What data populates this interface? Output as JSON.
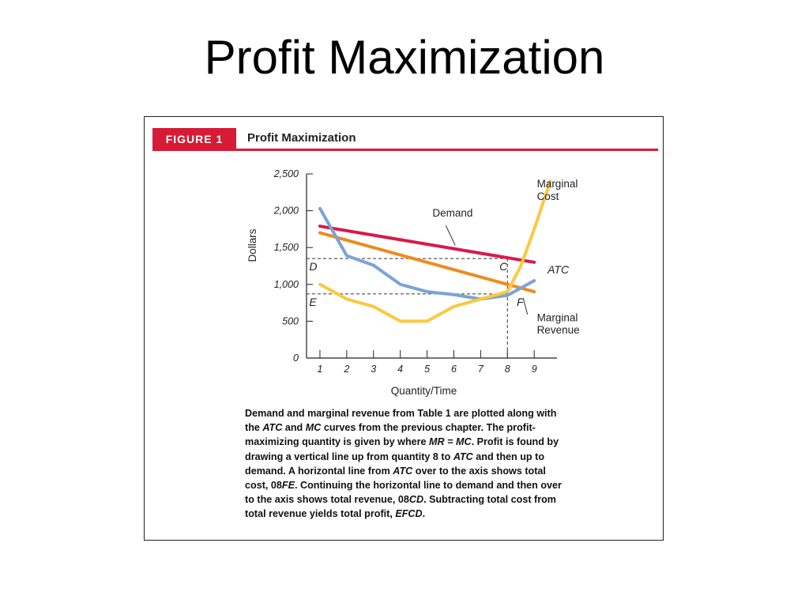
{
  "slide": {
    "title": "Profit Maximization"
  },
  "figure": {
    "tag": "FIGURE 1",
    "title": "Profit Maximization",
    "caption": {
      "p1": "Demand and marginal revenue from Table 1 are plotted along with the ",
      "atc1": "ATC",
      "p2": " and ",
      "mc": "MC",
      "p3": " curves from the previous chapter. The profit-maximizing quantity is given by where ",
      "mrmc": "MR = MC",
      "p4": ". Profit is found by drawing a vertical line up from quantity 8 to ",
      "atc2": "ATC",
      "p5": " and then up to demand. A horizontal line from ",
      "atc3": "ATC",
      "p6": " over to the axis shows total cost, 08",
      "fe": "FE",
      "p7": ". Continuing the horizontal line to demand and then over to the axis shows total revenue, 08",
      "cd": "CD",
      "p8": ". Subtracting total cost from total revenue yields total profit, ",
      "efcd": "EFCD",
      "p9": "."
    }
  },
  "chart_data": {
    "type": "line",
    "xlabel": "Quantity/Time",
    "ylabel": "Dollars",
    "xlim": [
      0.5,
      9.85
    ],
    "ylim": [
      0,
      2500
    ],
    "x_ticks": [
      1,
      2,
      3,
      4,
      5,
      6,
      7,
      8,
      9
    ],
    "y_ticks": [
      0,
      500,
      1000,
      1500,
      2000,
      2500
    ],
    "y_tick_labels": [
      "0",
      "500",
      "1,000",
      "1,500",
      "2,000",
      "2,500"
    ],
    "grid": false,
    "series": [
      {
        "name": "Demand",
        "color": "#d71a4a",
        "x": [
          1,
          9
        ],
        "y": [
          1790,
          1300
        ]
      },
      {
        "name": "Marginal Revenue",
        "color": "#f08a1c",
        "x": [
          1,
          9
        ],
        "y": [
          1700,
          900
        ]
      },
      {
        "name": "ATC",
        "color": "#7ba3d6",
        "x": [
          1,
          2,
          3,
          4,
          5,
          6,
          7,
          8,
          9
        ],
        "y": [
          2030,
          1390,
          1260,
          1000,
          900,
          860,
          800,
          850,
          1050
        ]
      },
      {
        "name": "Marginal Cost",
        "color": "#fbc840",
        "x": [
          1,
          2,
          3,
          4,
          5,
          6,
          7,
          8,
          8.5,
          9,
          9.6
        ],
        "y": [
          1000,
          800,
          700,
          500,
          500,
          700,
          800,
          900,
          1250,
          1750,
          2400
        ]
      }
    ],
    "guides": {
      "vertical_x": 8,
      "horizontal_y": [
        1350,
        870
      ]
    },
    "annotations": [
      {
        "text": "Demand",
        "x": 5.2,
        "y": 1920
      },
      {
        "text": "Marginal",
        "x": 9.1,
        "y": 2320
      },
      {
        "text": "Cost",
        "x": 9.1,
        "y": 2145
      },
      {
        "text": "ATC",
        "x": 9.5,
        "y": 1150
      },
      {
        "text": "Marginal",
        "x": 9.1,
        "y": 500
      },
      {
        "text": "Revenue",
        "x": 9.1,
        "y": 330
      },
      {
        "text": "C",
        "x": 7.7,
        "y": 1190
      },
      {
        "text": "D",
        "x": 0.6,
        "y": 1190
      },
      {
        "text": "E",
        "x": 0.6,
        "y": 710
      },
      {
        "text": "F",
        "x": 8.35,
        "y": 710
      }
    ]
  }
}
